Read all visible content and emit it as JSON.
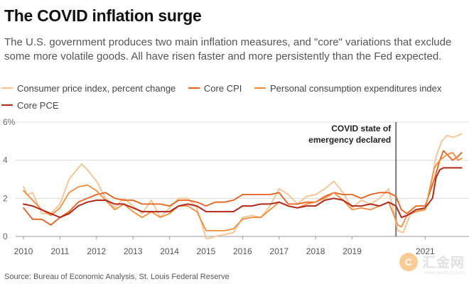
{
  "header": {
    "title": "The COVID inflation surge",
    "subtitle": "The U.S. government produces two main inflation measures, and \"core\" variations that exclude some more volatile goods. All have risen faster and more persistently than the Fed expected."
  },
  "footer": {
    "source": "Source: Bureau of Economic Analysis, St. Louis Federal Reserve"
  },
  "watermark": {
    "logo_glyph": "C",
    "text": "汇金网",
    "url": "www.gold678.com"
  },
  "chart_data": {
    "type": "line",
    "title": "The COVID inflation surge",
    "x_ticks": [
      "2010",
      "2011",
      "2012",
      "2013",
      "2014",
      "2015",
      "2016",
      "2017",
      "2018",
      "2019",
      "2021"
    ],
    "x_tick_values": [
      2010,
      2011,
      2012,
      2013,
      2014,
      2015,
      2016,
      2017,
      2018,
      2019,
      2021
    ],
    "y_ticks": [
      "0",
      "2",
      "4",
      "6%"
    ],
    "y_tick_values": [
      0,
      2,
      4,
      6
    ],
    "xlim": [
      2010,
      2022.2
    ],
    "ylim": [
      0,
      6
    ],
    "annotation": {
      "line1": "COVID state of",
      "line2": "emergency declared",
      "x": 2020.2
    },
    "series": [
      {
        "name": "Consumer price index, percent change",
        "color": "#f7c28e",
        "x": [
          2010,
          2010.1,
          2010.25,
          2010.5,
          2010.75,
          2011,
          2011.25,
          2011.5,
          2011.6,
          2011.75,
          2012,
          2012.25,
          2012.5,
          2012.75,
          2013,
          2013.25,
          2013.5,
          2013.75,
          2014,
          2014.25,
          2014.5,
          2014.75,
          2015,
          2015.1,
          2015.25,
          2015.5,
          2015.75,
          2016,
          2016.25,
          2016.5,
          2016.75,
          2017,
          2017.25,
          2017.5,
          2017.75,
          2018,
          2018.25,
          2018.5,
          2018.75,
          2019,
          2019.25,
          2019.5,
          2019.75,
          2020,
          2020.25,
          2020.4,
          2020.6,
          2020.75,
          2021,
          2021.15,
          2021.3,
          2021.45,
          2021.6,
          2021.75,
          2021.9,
          2022
        ],
        "y": [
          2.6,
          2.2,
          2.3,
          1.2,
          1.2,
          1.7,
          3.0,
          3.6,
          3.8,
          3.5,
          2.9,
          2.0,
          1.5,
          2.0,
          1.6,
          1.2,
          1.9,
          1.0,
          1.5,
          2.0,
          2.0,
          1.5,
          -0.1,
          -0.1,
          0.0,
          0.1,
          0.2,
          1.0,
          1.1,
          1.0,
          1.6,
          2.5,
          2.2,
          1.7,
          2.1,
          2.2,
          2.5,
          2.9,
          2.3,
          1.5,
          1.9,
          1.7,
          2.0,
          2.5,
          0.3,
          0.2,
          1.2,
          1.4,
          1.4,
          2.6,
          4.2,
          5.0,
          5.3,
          5.2,
          5.3,
          5.4
        ]
      },
      {
        "name": "Core CPI",
        "color": "#e8601c",
        "x": [
          2010,
          2010.25,
          2010.5,
          2010.75,
          2011,
          2011.25,
          2011.5,
          2011.75,
          2012,
          2012.25,
          2012.5,
          2012.75,
          2013,
          2013.25,
          2013.5,
          2013.75,
          2014,
          2014.25,
          2014.5,
          2014.75,
          2015,
          2015.25,
          2015.5,
          2015.75,
          2016,
          2016.25,
          2016.5,
          2016.75,
          2017,
          2017.25,
          2017.5,
          2017.75,
          2018,
          2018.25,
          2018.5,
          2018.75,
          2019,
          2019.25,
          2019.5,
          2019.75,
          2020,
          2020.2,
          2020.35,
          2020.5,
          2020.75,
          2021,
          2021.25,
          2021.4,
          2021.5,
          2021.6,
          2021.75,
          2021.9,
          2022
        ],
        "y": [
          1.5,
          0.9,
          0.9,
          0.6,
          1.0,
          1.3,
          1.8,
          2.0,
          2.2,
          2.3,
          2.0,
          1.9,
          1.9,
          1.7,
          1.7,
          1.7,
          1.6,
          1.9,
          1.9,
          1.8,
          1.6,
          1.8,
          1.8,
          1.9,
          2.2,
          2.2,
          2.2,
          2.2,
          2.3,
          1.7,
          1.7,
          1.8,
          1.8,
          2.1,
          2.3,
          2.2,
          2.2,
          2.0,
          2.2,
          2.3,
          2.3,
          2.1,
          1.4,
          1.2,
          1.6,
          1.6,
          3.0,
          4.0,
          4.5,
          4.3,
          4.0,
          4.2,
          4.4
        ]
      },
      {
        "name": "Personal consumption expenditures index",
        "color": "#f28d3c",
        "x": [
          2010,
          2010.25,
          2010.5,
          2010.75,
          2011,
          2011.25,
          2011.5,
          2011.75,
          2012,
          2012.25,
          2012.5,
          2012.75,
          2013,
          2013.25,
          2013.5,
          2013.75,
          2014,
          2014.25,
          2014.5,
          2014.75,
          2015,
          2015.25,
          2015.5,
          2015.75,
          2016,
          2016.25,
          2016.5,
          2016.75,
          2017,
          2017.25,
          2017.5,
          2017.75,
          2018,
          2018.25,
          2018.5,
          2018.75,
          2019,
          2019.25,
          2019.5,
          2019.75,
          2020,
          2020.25,
          2020.35,
          2020.5,
          2020.75,
          2021,
          2021.25,
          2021.4,
          2021.6,
          2021.75,
          2021.9,
          2022
        ],
        "y": [
          2.4,
          1.9,
          1.4,
          1.1,
          1.5,
          2.3,
          2.6,
          2.7,
          2.4,
          1.9,
          1.4,
          1.7,
          1.3,
          1.0,
          1.3,
          1.0,
          1.2,
          1.6,
          1.6,
          1.3,
          0.3,
          0.3,
          0.3,
          0.4,
          0.9,
          1.0,
          1.0,
          1.4,
          1.8,
          1.6,
          1.5,
          1.7,
          1.8,
          2.0,
          2.3,
          1.9,
          1.4,
          1.5,
          1.4,
          1.6,
          1.8,
          0.6,
          0.5,
          1.1,
          1.3,
          1.4,
          3.6,
          4.0,
          4.3,
          4.4,
          4.0,
          4.1
        ]
      },
      {
        "name": "Core PCE",
        "color": "#b22a1a",
        "x": [
          2010,
          2010.25,
          2010.5,
          2010.75,
          2011,
          2011.25,
          2011.5,
          2011.75,
          2012,
          2012.25,
          2012.5,
          2012.75,
          2013,
          2013.25,
          2013.5,
          2013.75,
          2014,
          2014.25,
          2014.5,
          2014.75,
          2015,
          2015.25,
          2015.5,
          2015.75,
          2016,
          2016.25,
          2016.5,
          2016.75,
          2017,
          2017.25,
          2017.5,
          2017.75,
          2018,
          2018.25,
          2018.5,
          2018.75,
          2019,
          2019.25,
          2019.5,
          2019.75,
          2020,
          2020.2,
          2020.35,
          2020.5,
          2020.75,
          2021,
          2021.2,
          2021.3,
          2021.4,
          2021.5,
          2021.75,
          2022
        ],
        "y": [
          1.7,
          1.6,
          1.4,
          1.2,
          1.0,
          1.2,
          1.6,
          1.8,
          1.9,
          1.9,
          1.7,
          1.7,
          1.5,
          1.3,
          1.3,
          1.3,
          1.3,
          1.6,
          1.7,
          1.6,
          1.3,
          1.3,
          1.3,
          1.3,
          1.6,
          1.6,
          1.7,
          1.7,
          1.8,
          1.6,
          1.5,
          1.6,
          1.6,
          1.9,
          2.0,
          1.9,
          1.6,
          1.6,
          1.7,
          1.6,
          1.8,
          1.6,
          1.0,
          1.1,
          1.4,
          1.5,
          2.0,
          3.1,
          3.5,
          3.6,
          3.6,
          3.6
        ]
      }
    ]
  }
}
